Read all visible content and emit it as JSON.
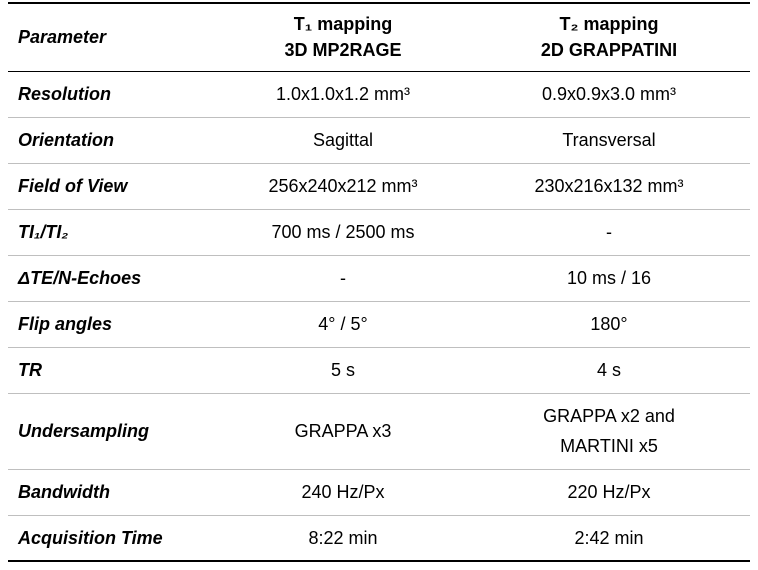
{
  "table": {
    "header": [
      "Parameter",
      [
        "T₁ mapping",
        "3D MP2RAGE"
      ],
      [
        "T₂ mapping",
        "2D GRAPPATINI"
      ]
    ],
    "rows": [
      [
        "Resolution",
        "1.0x1.0x1.2 mm³",
        "0.9x0.9x3.0 mm³"
      ],
      [
        "Orientation",
        "Sagittal",
        "Transversal"
      ],
      [
        "Field of View",
        "256x240x212 mm³",
        "230x216x132 mm³"
      ],
      [
        "TI₁/TI₂",
        "700 ms / 2500 ms",
        "-"
      ],
      [
        "ΔTE/N-Echoes",
        "-",
        "10 ms / 16"
      ],
      [
        "Flip angles",
        "4° / 5°",
        "180°"
      ],
      [
        "TR",
        "5 s",
        "4 s"
      ],
      [
        "Undersampling",
        "GRAPPA x3",
        [
          "GRAPPA x2 and",
          "MARTINI x5"
        ]
      ],
      [
        "Bandwidth",
        "240 Hz/Px",
        "220 Hz/Px"
      ],
      [
        "Acquisition Time",
        "8:22 min",
        "2:42 min"
      ]
    ]
  }
}
